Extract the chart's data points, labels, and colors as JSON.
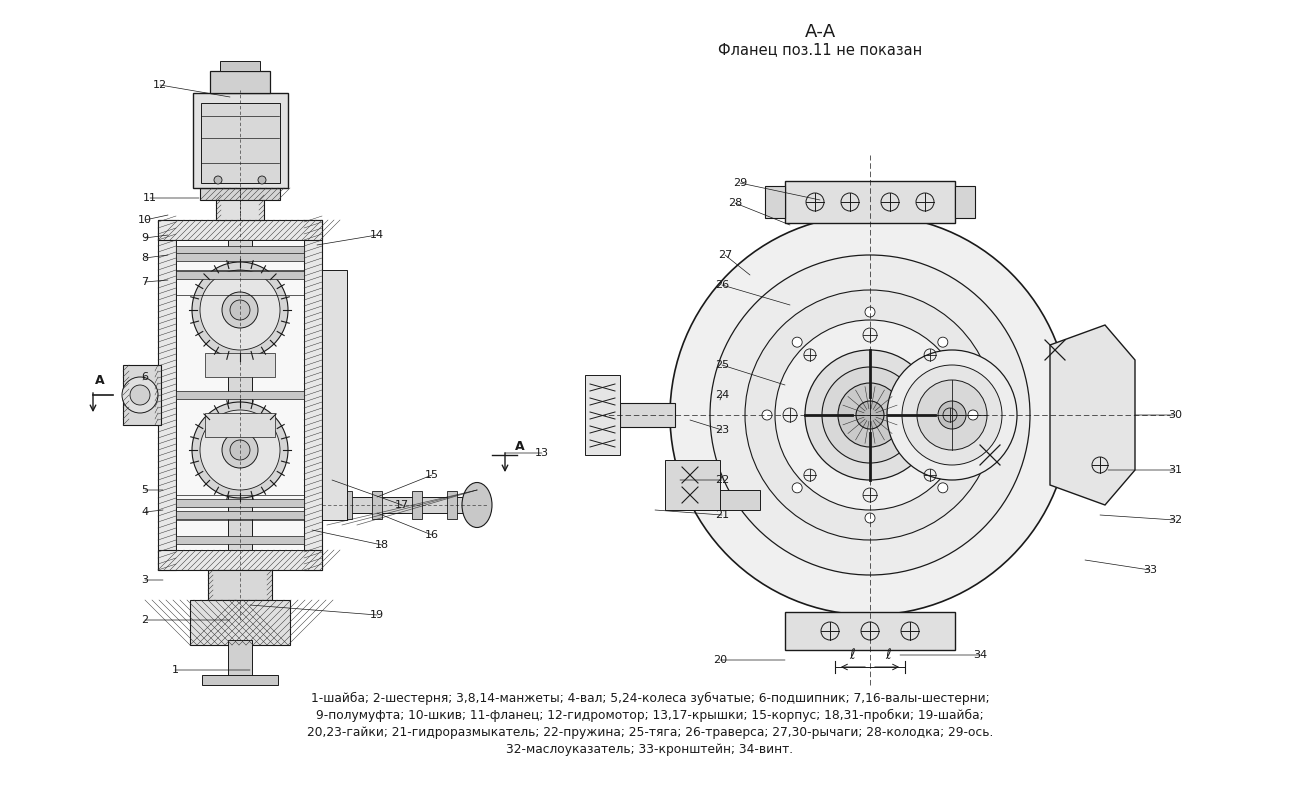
{
  "background_color": "#ffffff",
  "title_aa": "А-А",
  "subtitle": "Фланец поз.11 не показан",
  "caption_lines": [
    "1-шайба; 2-шестерня; 3,8,14-манжеты; 4-вал; 5,24-колеса зубчатые; 6-подшипник; 7,16-валы-шестерни;",
    "9-полумуфта; 10-шкив; 11-фланец; 12-гидромотор; 13,17-крышки; 15-корпус; 18,31-пробки; 19-шайба;",
    "20,23-гайки; 21-гидроразмыкатель; 22-пружина; 25-тяга; 26-траверса; 27,30-рычаги; 28-колодка; 29-ось.",
    "32-маслоуказатель; 33-кронштейн; 34-винт."
  ],
  "text_color": "#1a1a1a",
  "line_color": "#1a1a1a",
  "hatch_color": "#333333"
}
